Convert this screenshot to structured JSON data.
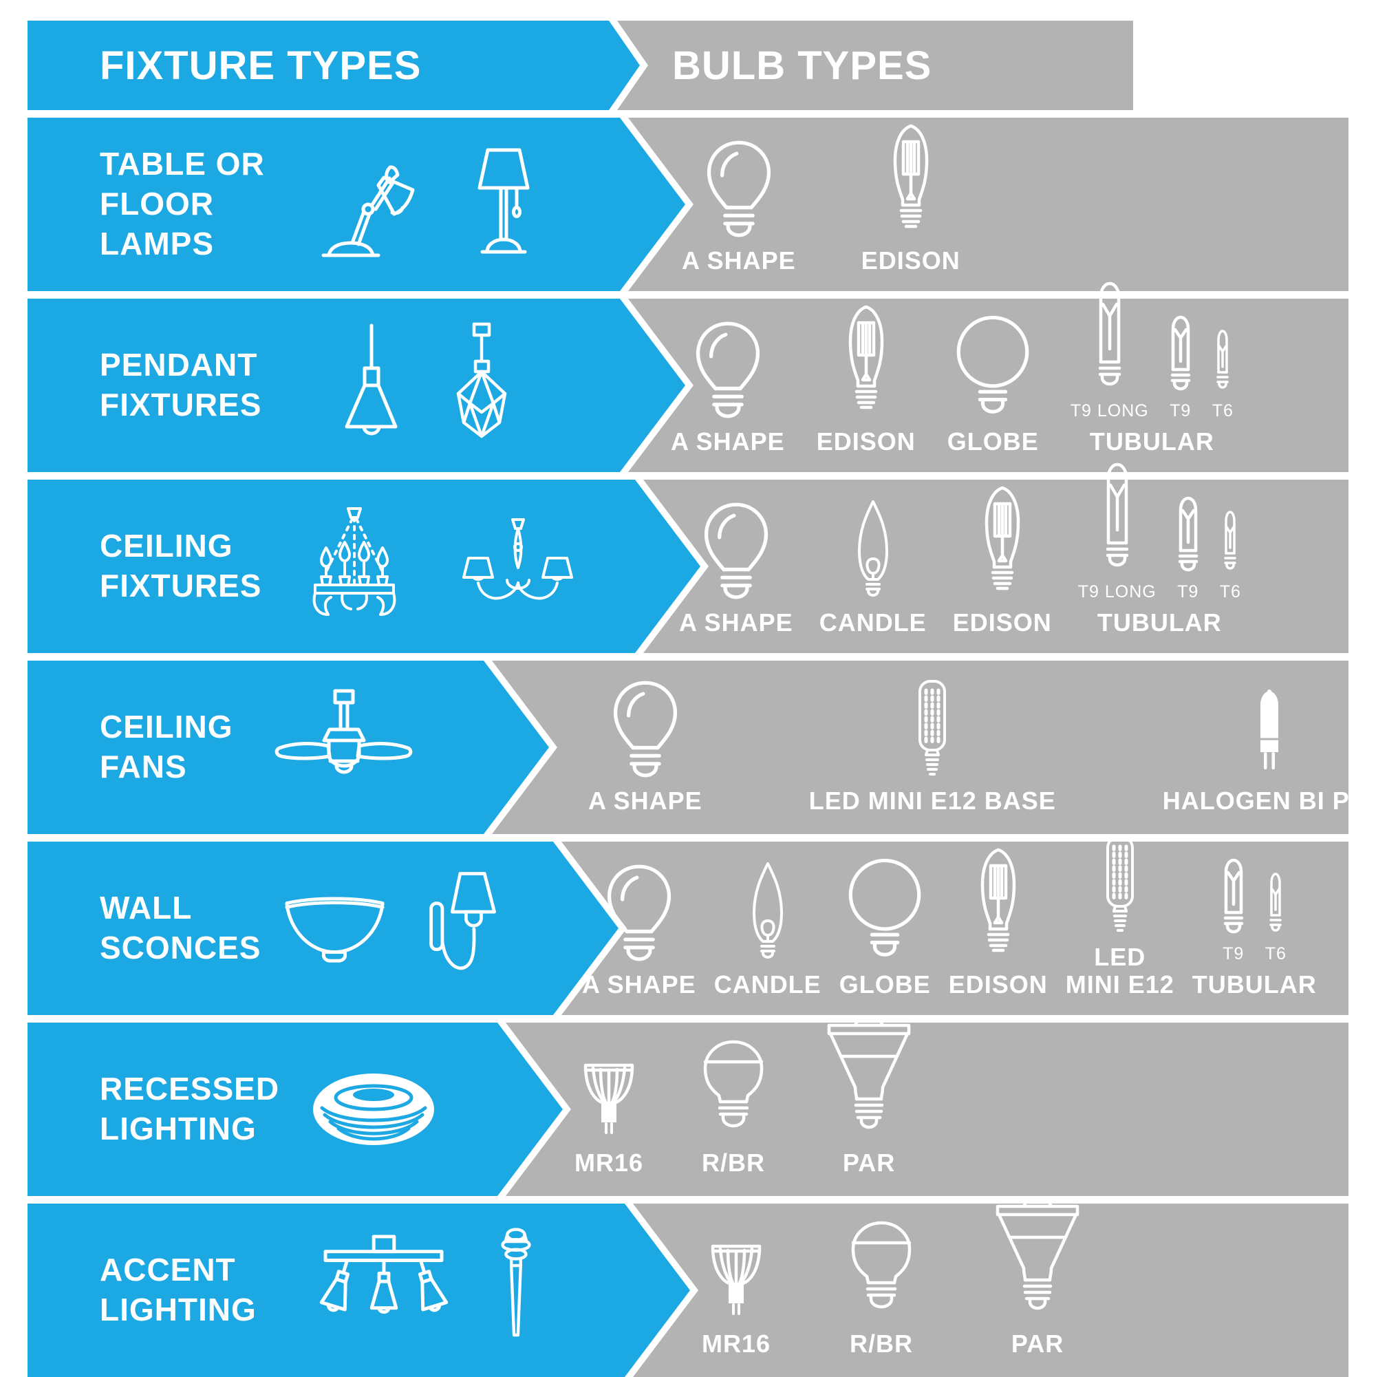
{
  "colors": {
    "blue": "#1ca8e2",
    "gray": "#b3b3b3",
    "text": "#ffffff"
  },
  "header": {
    "fixture_types": "FIXTURE TYPES",
    "bulb_types": "BULB TYPES"
  },
  "rows": [
    {
      "label_lines": [
        "TABLE OR",
        "FLOOR",
        "LAMPS"
      ],
      "fixture_icons": [
        "desk-lamp",
        "table-lamp"
      ],
      "bulbs": [
        {
          "name": "A SHAPE",
          "icon": "a-shape"
        },
        {
          "name": "EDISON",
          "icon": "edison"
        }
      ]
    },
    {
      "label_lines": [
        "PENDANT",
        "FIXTURES"
      ],
      "fixture_icons": [
        "pendant-cone",
        "pendant-faceted"
      ],
      "bulbs": [
        {
          "name": "A SHAPE",
          "icon": "a-shape"
        },
        {
          "name": "EDISON",
          "icon": "edison"
        },
        {
          "name": "GLOBE",
          "icon": "globe"
        },
        {
          "name": "TUBULAR",
          "icon": "tubular-group",
          "variants": [
            {
              "name": "T9 LONG",
              "icon": "t9-long"
            },
            {
              "name": "T9",
              "icon": "t9"
            },
            {
              "name": "T6",
              "icon": "t6"
            }
          ]
        }
      ]
    },
    {
      "label_lines": [
        "CEILING",
        "FIXTURES"
      ],
      "fixture_icons": [
        "chandelier-candles",
        "chandelier-shades"
      ],
      "bulbs": [
        {
          "name": "A SHAPE",
          "icon": "a-shape"
        },
        {
          "name": "CANDLE",
          "icon": "candle"
        },
        {
          "name": "EDISON",
          "icon": "edison"
        },
        {
          "name": "TUBULAR",
          "icon": "tubular-group",
          "variants": [
            {
              "name": "T9 LONG",
              "icon": "t9-long"
            },
            {
              "name": "T9",
              "icon": "t9"
            },
            {
              "name": "T6",
              "icon": "t6"
            }
          ]
        }
      ]
    },
    {
      "label_lines": [
        "CEILING",
        "FANS"
      ],
      "fixture_icons": [
        "ceiling-fan"
      ],
      "bulbs": [
        {
          "name": "A SHAPE",
          "icon": "a-shape"
        },
        {
          "name": "LED MINI E12 BASE",
          "icon": "led-mini"
        },
        {
          "name": "HALOGEN BI PIN",
          "icon": "halogen-bi-pin"
        }
      ]
    },
    {
      "label_lines": [
        "WALL",
        "SCONCES"
      ],
      "fixture_icons": [
        "bowl-sconce",
        "wall-sconce"
      ],
      "bulbs": [
        {
          "name": "A SHAPE",
          "icon": "a-shape"
        },
        {
          "name": "CANDLE",
          "icon": "candle"
        },
        {
          "name": "GLOBE",
          "icon": "globe"
        },
        {
          "name": "EDISON",
          "icon": "edison"
        },
        {
          "name": "LED MINI E12",
          "name_lines": [
            "LED",
            "MINI E12"
          ],
          "icon": "led-mini"
        },
        {
          "name": "TUBULAR",
          "icon": "tubular-group",
          "variants": [
            {
              "name": "T9",
              "icon": "t9"
            },
            {
              "name": "T6",
              "icon": "t6"
            }
          ]
        }
      ]
    },
    {
      "label_lines": [
        "RECESSED",
        "LIGHTING"
      ],
      "fixture_icons": [
        "recessed-can"
      ],
      "bulbs": [
        {
          "name": "MR16",
          "icon": "mr16"
        },
        {
          "name": "R/BR",
          "icon": "r-br"
        },
        {
          "name": "PAR",
          "icon": "par"
        }
      ]
    },
    {
      "label_lines": [
        "ACCENT",
        "LIGHTING"
      ],
      "fixture_icons": [
        "track-light",
        "path-light"
      ],
      "bulbs": [
        {
          "name": "MR16",
          "icon": "mr16"
        },
        {
          "name": "R/BR",
          "icon": "r-br"
        },
        {
          "name": "PAR",
          "icon": "par"
        }
      ]
    }
  ]
}
